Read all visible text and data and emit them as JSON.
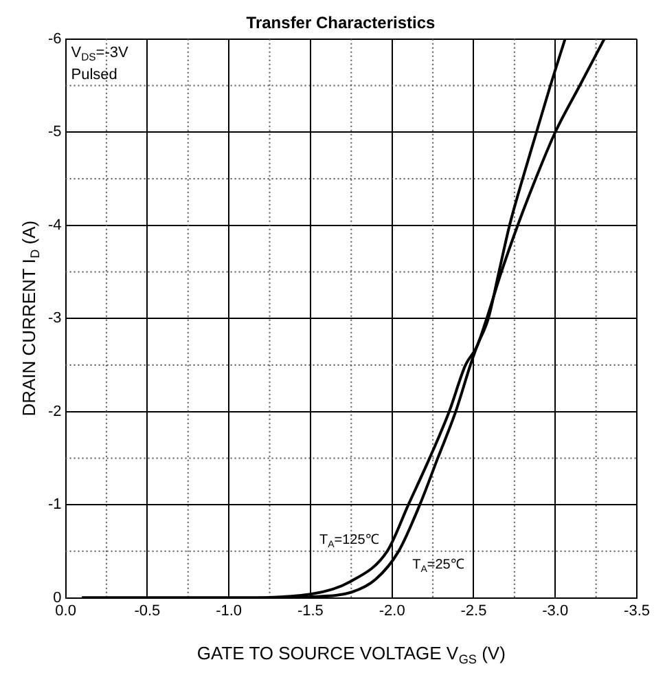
{
  "chart_data": {
    "type": "line",
    "title": "Transfer Characteristics",
    "xlabel": "GATE TO SOURCE VOLTAGE V$_{GS}$ (V)",
    "ylabel": "DRAIN CURRENT I$_{D}$ (A)",
    "annotations": [
      "V$_{DS}$=-3V",
      "Pulsed"
    ],
    "series": [
      {
        "name": "T$_{A}$=125℃",
        "color": "#000000",
        "x": [
          -0.1,
          -1.0,
          -1.5,
          -1.75,
          -1.97,
          -2.1,
          -2.23,
          -2.35,
          -2.45,
          -2.52,
          -2.58,
          -2.67,
          -2.77,
          -2.88,
          -3.0,
          -3.15,
          -3.3
        ],
        "values": [
          0,
          0,
          -0.04,
          -0.18,
          -0.5,
          -1,
          -1.5,
          -2,
          -2.5,
          -2.7,
          -3,
          -3.5,
          -4,
          -4.5,
          -5,
          -5.5,
          -6
        ]
      },
      {
        "name": "T$_{A}$=25℃",
        "color": "#000000",
        "x": [
          -0.1,
          -1.25,
          -1.5,
          -1.75,
          -1.9,
          -2.04,
          -2.17,
          -2.28,
          -2.39,
          -2.48,
          -2.52,
          -2.59,
          -2.655,
          -2.72,
          -2.8,
          -2.885,
          -2.97,
          -3.06
        ],
        "values": [
          0,
          0,
          -0.01,
          -0.06,
          -0.2,
          -0.5,
          -1,
          -1.5,
          -2,
          -2.5,
          -2.7,
          -3,
          -3.5,
          -4,
          -4.5,
          -5,
          -5.5,
          -6
        ]
      }
    ],
    "xlim": [
      0,
      -3.5
    ],
    "xticks": [
      {
        "value": 0,
        "label": "0.0"
      },
      {
        "value": -0.5,
        "label": "-0.5"
      },
      {
        "value": -1,
        "label": "-1.0"
      },
      {
        "value": -1.5,
        "label": "-1.5"
      },
      {
        "value": -2,
        "label": "-2.0"
      },
      {
        "value": -2.5,
        "label": "-2.5"
      },
      {
        "value": -3,
        "label": "-3.0"
      },
      {
        "value": -3.5,
        "label": "-3.5"
      }
    ],
    "ylim": [
      0,
      -6
    ],
    "yticks": [
      0,
      -1,
      -2,
      -3,
      -4,
      -5,
      -6
    ],
    "grid": true,
    "legend": false,
    "marker": "none",
    "line_style": "solid"
  }
}
